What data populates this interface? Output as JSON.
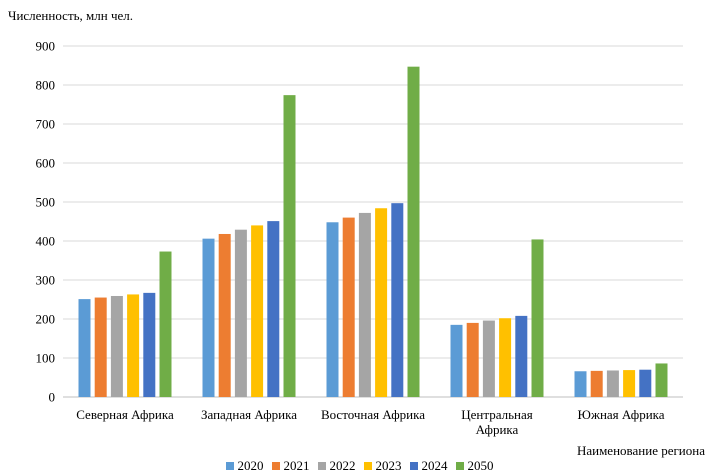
{
  "chart_data": {
    "type": "bar",
    "ylabel": "Численность, млн чел.",
    "xlabel": "Наименование региона",
    "ylim": [
      0,
      900
    ],
    "yticks": [
      "0",
      "100",
      "200",
      "300",
      "400",
      "500",
      "600",
      "700",
      "800",
      "900"
    ],
    "grid": true,
    "legend_position": "bottom",
    "categories": [
      "Северная Африка",
      "Западная Африка",
      "Восточная Африка",
      "Центральная Африка",
      "Южная Африка"
    ],
    "series": [
      {
        "name": "2020",
        "color": "#5B9BD5",
        "values": [
          251,
          406,
          448,
          185,
          66
        ]
      },
      {
        "name": "2021",
        "color": "#ED7D31",
        "values": [
          255,
          418,
          460,
          190,
          67
        ]
      },
      {
        "name": "2022",
        "color": "#A5A5A5",
        "values": [
          259,
          429,
          472,
          196,
          68
        ]
      },
      {
        "name": "2023",
        "color": "#FFC000",
        "values": [
          263,
          440,
          484,
          202,
          69
        ]
      },
      {
        "name": "2024",
        "color": "#4472C4",
        "values": [
          267,
          451,
          497,
          208,
          70
        ]
      },
      {
        "name": "2050",
        "color": "#70AD47",
        "values": [
          373,
          774,
          847,
          404,
          86
        ]
      }
    ]
  }
}
